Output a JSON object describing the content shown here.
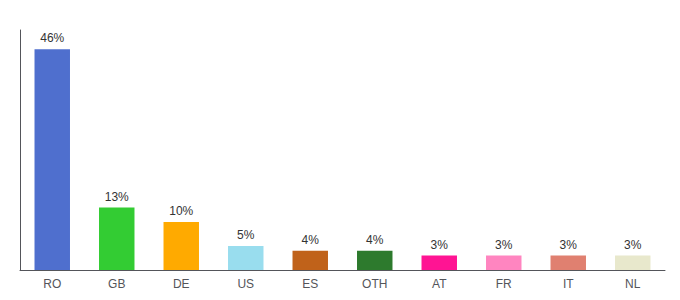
{
  "chart_data": {
    "type": "bar",
    "categories": [
      "RO",
      "GB",
      "DE",
      "US",
      "ES",
      "OTH",
      "AT",
      "FR",
      "IT",
      "NL"
    ],
    "values": [
      46,
      13,
      10,
      5,
      4,
      4,
      3,
      3,
      3,
      3
    ],
    "value_labels": [
      "46%",
      "13%",
      "10%",
      "5%",
      "4%",
      "4%",
      "3%",
      "3%",
      "3%",
      "3%"
    ],
    "data_labels": true,
    "colors": [
      "#4f6fce",
      "#33cc33",
      "#ffaa00",
      "#99ddee",
      "#c0621a",
      "#2d7a2d",
      "#ff1493",
      "#ff85c0",
      "#e08070",
      "#e8e8cc"
    ],
    "ylim": [
      0,
      50
    ],
    "grid": false,
    "tick_labels": "x"
  }
}
